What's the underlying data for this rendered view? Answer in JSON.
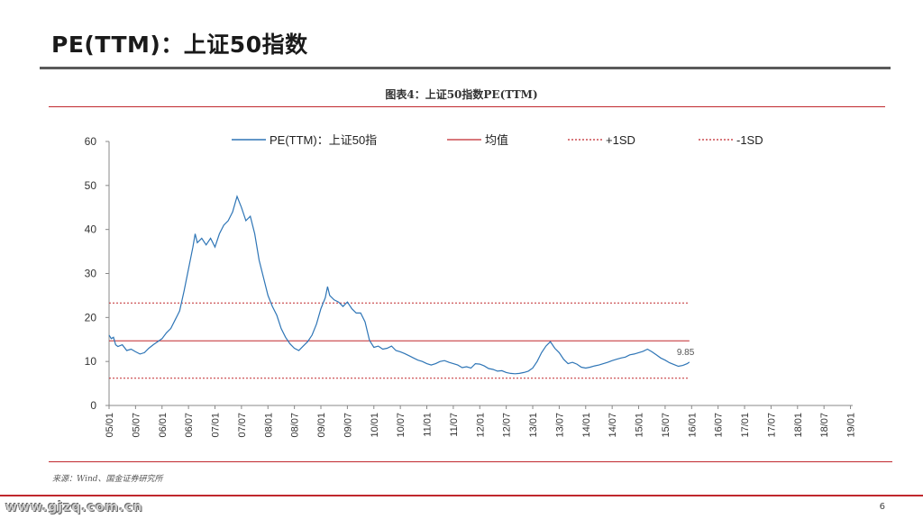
{
  "slide": {
    "title": "PE(TTM)：上证50指数",
    "caption": "图表4：上证50指数PE(TTM)",
    "source": "来源：Wind、国金证券研究所",
    "footer_url": "www.gjzq.com.cn",
    "page_number": "6"
  },
  "colors": {
    "series": "#2e75b6",
    "mean": "#c0282d",
    "band": "#c0282d",
    "accent": "#c0282d"
  },
  "chart_data": {
    "type": "line",
    "title": "图表4：上证50指数PE(TTM)",
    "xlabel": "",
    "ylabel": "",
    "ylim": [
      0,
      60
    ],
    "yticks": [
      "0",
      "10",
      "20",
      "30",
      "40",
      "50",
      "60"
    ],
    "xticks": [
      "05/01",
      "05/07",
      "06/01",
      "06/07",
      "07/01",
      "07/07",
      "08/01",
      "08/07",
      "09/01",
      "09/07",
      "10/01",
      "10/07",
      "11/01",
      "11/07",
      "12/01",
      "12/07",
      "13/01",
      "13/07",
      "14/01",
      "14/07",
      "15/01",
      "15/07",
      "16/01",
      "16/07",
      "17/01",
      "17/07",
      "18/01",
      "18/07",
      "19/01"
    ],
    "grid": false,
    "legend_position": "top",
    "legend": [
      "PE(TTM)：上证50指",
      "均值",
      "+1SD",
      "-1SD"
    ],
    "end_label": "9.85",
    "series": [
      {
        "name": "PE(TTM)：上证50指",
        "style": "solid",
        "values": [
          [
            0,
            16.0
          ],
          [
            0.5,
            15.2
          ],
          [
            1,
            15.5
          ],
          [
            1.5,
            13.8
          ],
          [
            2,
            13.4
          ],
          [
            3,
            13.8
          ],
          [
            4,
            12.5
          ],
          [
            5,
            12.8
          ],
          [
            6,
            12.2
          ],
          [
            7,
            11.7
          ],
          [
            8,
            12.0
          ],
          [
            9,
            13.0
          ],
          [
            10,
            13.8
          ],
          [
            11,
            14.5
          ],
          [
            12,
            15.2
          ],
          [
            13,
            16.5
          ],
          [
            14,
            17.5
          ],
          [
            15,
            19.5
          ],
          [
            15.5,
            20.5
          ],
          [
            16,
            21.5
          ],
          [
            17,
            26
          ],
          [
            18,
            31
          ],
          [
            19,
            36
          ],
          [
            19.5,
            39
          ],
          [
            20,
            37
          ],
          [
            21,
            38
          ],
          [
            22,
            36.5
          ],
          [
            23,
            38
          ],
          [
            24,
            36
          ],
          [
            25,
            39
          ],
          [
            26,
            41
          ],
          [
            27,
            42
          ],
          [
            28,
            44
          ],
          [
            29,
            47.5
          ],
          [
            30,
            45
          ],
          [
            31,
            42
          ],
          [
            32,
            43
          ],
          [
            33,
            39
          ],
          [
            34,
            33
          ],
          [
            35,
            29
          ],
          [
            36,
            25
          ],
          [
            37,
            22.5
          ],
          [
            38,
            20.5
          ],
          [
            39,
            17.5
          ],
          [
            40,
            15.5
          ],
          [
            41,
            14
          ],
          [
            42,
            13
          ],
          [
            43,
            12.5
          ],
          [
            44,
            13.5
          ],
          [
            45,
            14.5
          ],
          [
            46,
            16
          ],
          [
            47,
            18.5
          ],
          [
            48,
            22
          ],
          [
            49,
            24.5
          ],
          [
            49.5,
            27
          ],
          [
            50,
            25
          ],
          [
            51,
            24
          ],
          [
            52,
            23.5
          ],
          [
            53,
            22.5
          ],
          [
            54,
            23.5
          ],
          [
            55,
            22
          ],
          [
            56,
            21
          ],
          [
            57,
            21
          ],
          [
            58,
            19
          ],
          [
            59,
            14.8
          ],
          [
            60,
            13.2
          ],
          [
            61,
            13.5
          ],
          [
            62,
            12.8
          ],
          [
            63,
            13
          ],
          [
            64,
            13.5
          ],
          [
            65,
            12.5
          ],
          [
            66,
            12.2
          ],
          [
            67,
            11.8
          ],
          [
            68,
            11.3
          ],
          [
            69,
            10.8
          ],
          [
            70,
            10.3
          ],
          [
            71,
            10
          ],
          [
            72,
            9.5
          ],
          [
            73,
            9.2
          ],
          [
            74,
            9.5
          ],
          [
            75,
            10
          ],
          [
            76,
            10.2
          ],
          [
            77,
            9.8
          ],
          [
            78,
            9.5
          ],
          [
            79,
            9.2
          ],
          [
            80,
            8.6
          ],
          [
            81,
            8.8
          ],
          [
            82,
            8.5
          ],
          [
            83,
            9.5
          ],
          [
            84,
            9.4
          ],
          [
            85,
            9
          ],
          [
            86,
            8.4
          ],
          [
            87,
            8.2
          ],
          [
            88,
            7.8
          ],
          [
            89,
            7.9
          ],
          [
            90,
            7.5
          ],
          [
            91,
            7.3
          ],
          [
            92,
            7.2
          ],
          [
            93,
            7.3
          ],
          [
            94,
            7.5
          ],
          [
            95,
            7.8
          ],
          [
            96,
            8.5
          ],
          [
            97,
            10
          ],
          [
            98,
            12
          ],
          [
            99,
            13.5
          ],
          [
            100,
            14.5
          ],
          [
            101,
            13
          ],
          [
            102,
            12
          ],
          [
            103,
            10.5
          ],
          [
            104,
            9.5
          ],
          [
            105,
            9.8
          ],
          [
            106,
            9.4
          ],
          [
            107,
            8.7
          ],
          [
            108,
            8.5
          ],
          [
            109,
            8.7
          ],
          [
            110,
            9
          ],
          [
            111,
            9.2
          ],
          [
            112,
            9.5
          ],
          [
            113,
            9.8
          ],
          [
            114,
            10.2
          ],
          [
            115,
            10.5
          ],
          [
            116,
            10.8
          ],
          [
            117,
            11
          ],
          [
            118,
            11.5
          ],
          [
            119,
            11.7
          ],
          [
            120,
            12
          ],
          [
            121,
            12.3
          ],
          [
            122,
            12.8
          ],
          [
            123,
            12.2
          ],
          [
            124,
            11.5
          ],
          [
            125,
            10.8
          ],
          [
            126,
            10.3
          ],
          [
            127,
            9.7
          ],
          [
            128,
            9.3
          ],
          [
            129,
            8.9
          ],
          [
            130,
            9.1
          ],
          [
            131,
            9.5
          ],
          [
            131.5,
            9.85
          ]
        ]
      },
      {
        "name": "均值",
        "style": "solid",
        "value": 14.7
      },
      {
        "name": "+1SD",
        "style": "dotted",
        "value": 23.3
      },
      {
        "name": "-1SD",
        "style": "dotted",
        "value": 6.2
      }
    ]
  }
}
